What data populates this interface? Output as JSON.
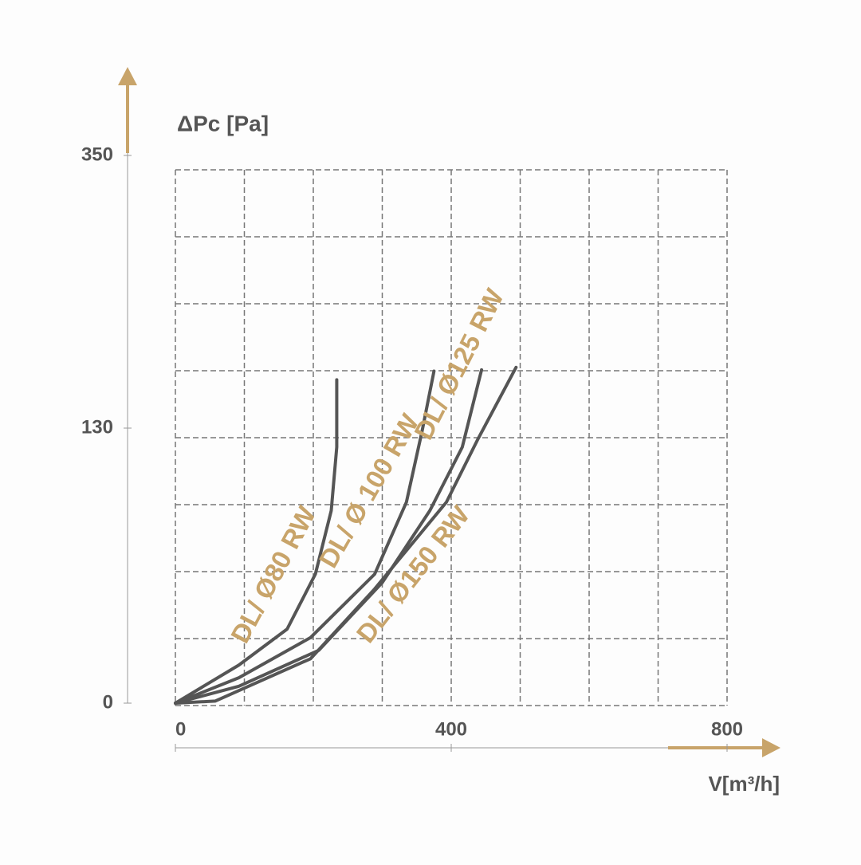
{
  "chart_data": {
    "type": "line",
    "y_label": "ΔPc [Pa]",
    "x_label": "V[m³/h]",
    "xlim": [
      0,
      800
    ],
    "xticks": [
      0,
      400,
      800
    ],
    "ylim": [
      0,
      350
    ],
    "yticks": [
      0,
      130,
      350
    ],
    "series": [
      {
        "name": "DL/ Ø80 RW",
        "color": "#555555",
        "x": [
          0,
          92,
          162,
          203,
          226,
          234,
          234
        ],
        "values": [
          0,
          18,
          35,
          61,
          91,
          121,
          169
        ]
      },
      {
        "name": "DL/ Ø 100 RW",
        "color": "#555555",
        "x": [
          0,
          92,
          196,
          289,
          335,
          358,
          375
        ],
        "values": [
          0,
          12,
          31,
          61,
          95,
          129,
          176
        ]
      },
      {
        "name": "DL/ Ø125 RW",
        "color": "#555555",
        "x": [
          0,
          92,
          208,
          300,
          369,
          416,
          444
        ],
        "values": [
          0,
          8,
          25,
          57,
          91,
          121,
          177
        ]
      },
      {
        "name": "DL/ Ø150 RW",
        "color": "#555555",
        "x": [
          0,
          58,
          196,
          289,
          393,
          439,
          494
        ],
        "values": [
          0,
          1,
          21,
          54,
          95,
          125,
          179
        ]
      }
    ],
    "label_color": "#c8a46a",
    "arrow_color": "#c8a46a"
  }
}
